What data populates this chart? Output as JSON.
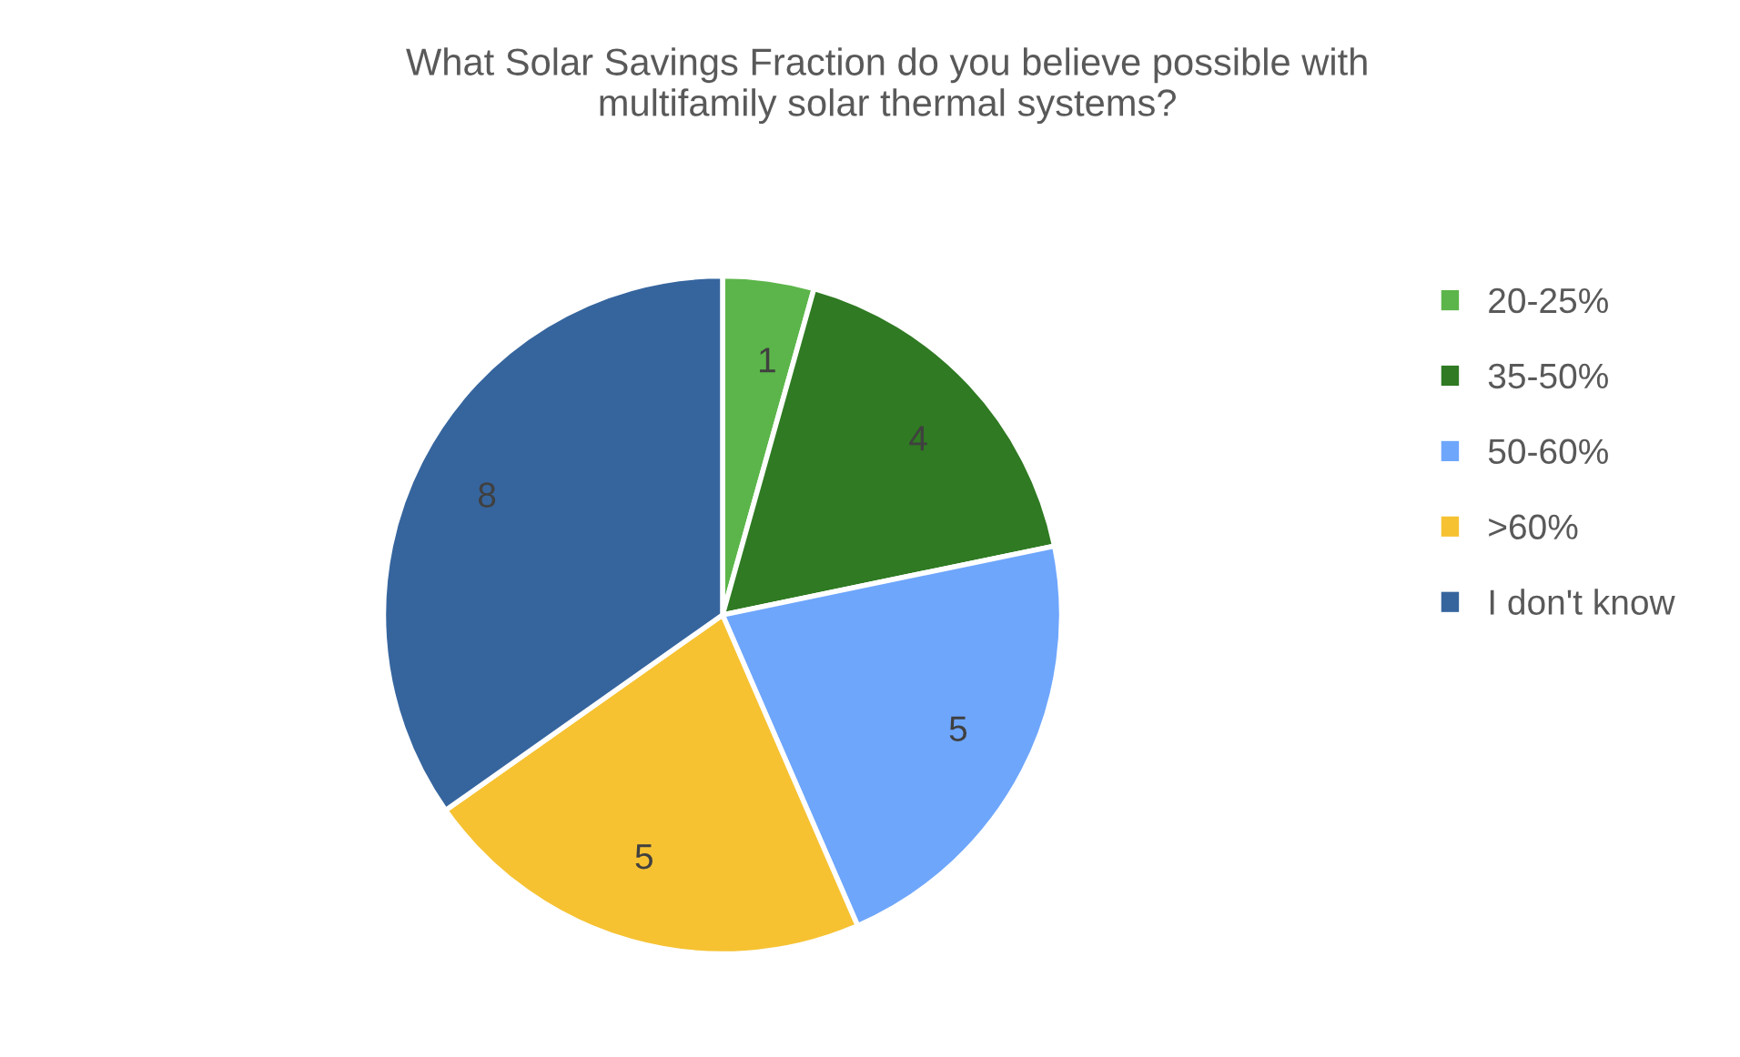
{
  "chart_data": {
    "type": "pie",
    "title": "What Solar Savings Fraction do you believe possible with\nmultifamily solar thermal systems?",
    "categories": [
      "20-25%",
      "35-50%",
      "50-60%",
      ">60%",
      "I don't know"
    ],
    "values": [
      1,
      4,
      5,
      5,
      8
    ],
    "colors": [
      "#5cb54a",
      "#2f7a22",
      "#6ea6fc",
      "#f6c232",
      "#36659e"
    ],
    "data_labels": true,
    "legend": "right"
  }
}
